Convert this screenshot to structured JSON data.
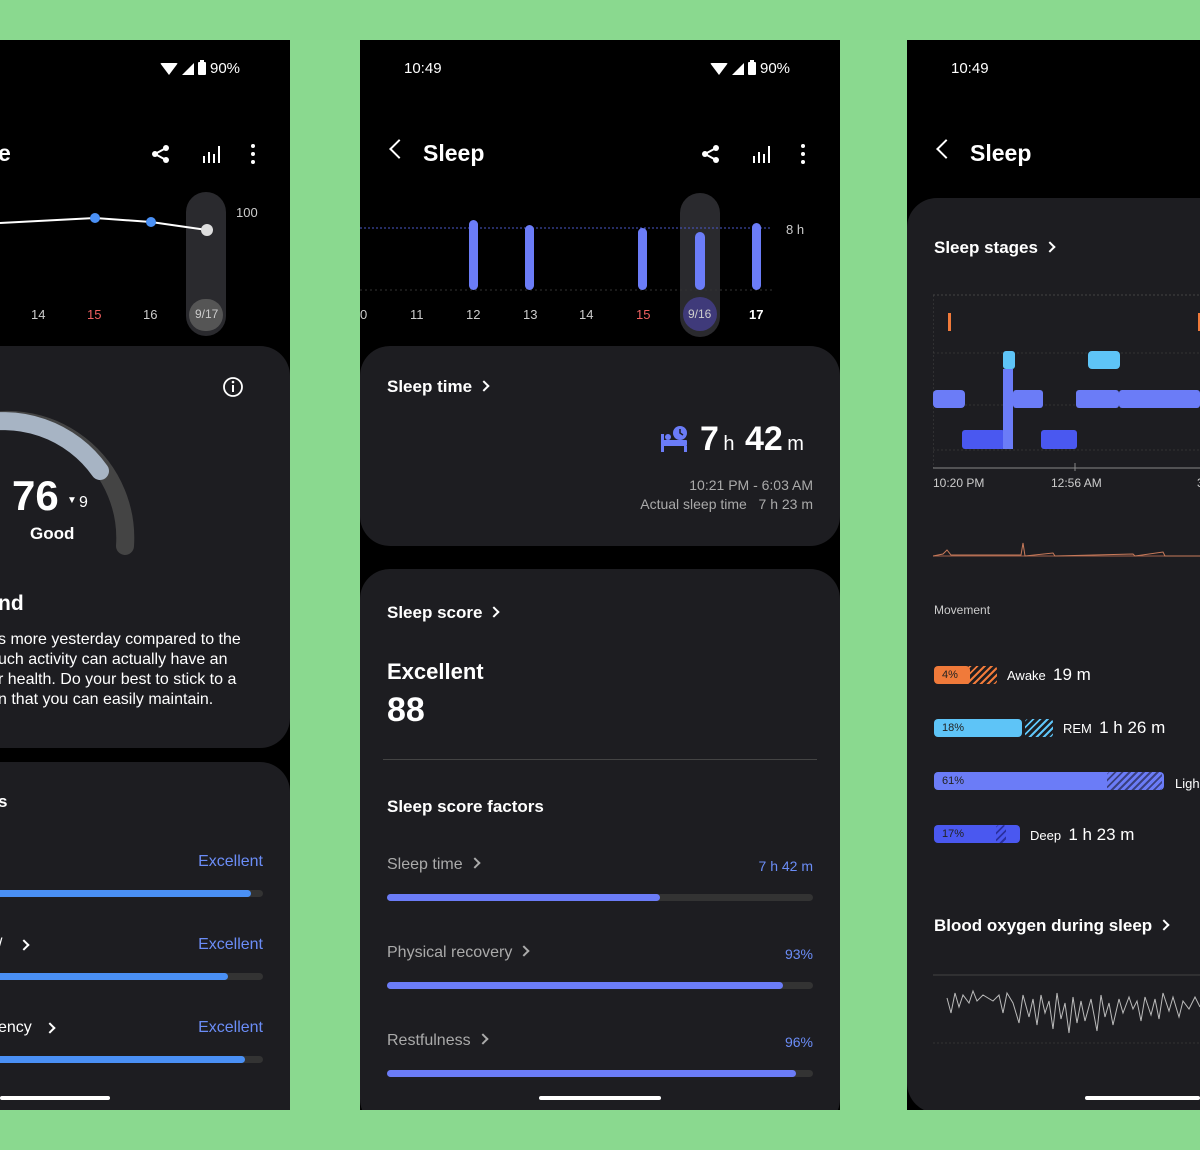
{
  "left": {
    "status_battery": "90%",
    "title_fragment": "e",
    "chart": {
      "max_label": "100",
      "x_labels": [
        "14",
        "15",
        "16",
        "9/17"
      ],
      "highlight_label": "15",
      "selected_label": "9/17"
    },
    "score": {
      "value": "76",
      "delta": "9",
      "rating": "Good"
    },
    "insight": {
      "heading_fragment": "nd",
      "text_lines": [
        "s more yesterday compared to the",
        "uch activity can actually have an",
        "r health. Do your best to stick to a",
        "n that you can easily maintain."
      ]
    },
    "factors_heading_fragment": "s",
    "factors": [
      {
        "name": "",
        "rating": "Excellent",
        "progress_pct": 96
      },
      {
        "name": "/",
        "rating": "Excellent",
        "progress_pct": 88
      },
      {
        "name": "ency",
        "rating": "Excellent",
        "progress_pct": 94
      }
    ]
  },
  "mid": {
    "status_time": "10:49",
    "status_battery": "90%",
    "title": "Sleep",
    "chart": {
      "goal_label": "8 h",
      "x_labels": [
        "0",
        "11",
        "12",
        "13",
        "14",
        "15",
        "9/16",
        "17"
      ],
      "highlight_label": "15",
      "selected_label": "9/16",
      "bold_label": "17"
    },
    "sleep_time": {
      "heading": "Sleep time",
      "hours": "7",
      "hours_unit": "h",
      "minutes": "42",
      "minutes_unit": "m",
      "range": "10:21 PM - 6:03 AM",
      "actual_label": "Actual sleep time",
      "actual_value": "7 h 23 m"
    },
    "sleep_score": {
      "heading": "Sleep score",
      "rating": "Excellent",
      "value": "88",
      "factors_heading": "Sleep score factors",
      "factors": [
        {
          "name": "Sleep time",
          "value": "7 h 42 m",
          "progress_pct": 64
        },
        {
          "name": "Physical recovery",
          "value": "93%",
          "progress_pct": 93
        },
        {
          "name": "Restfulness",
          "value": "96%",
          "progress_pct": 96
        }
      ]
    }
  },
  "right": {
    "status_time": "10:49",
    "title": "Sleep",
    "stages": {
      "heading": "Sleep stages",
      "x_labels": [
        "10:20 PM",
        "12:56 AM",
        "3"
      ],
      "movement_label": "Movement",
      "legend": [
        {
          "pct": "4%",
          "name": "Awake",
          "duration": "19 m",
          "color": "#f07a3a"
        },
        {
          "pct": "18%",
          "name": "REM",
          "duration": "1 h 26 m",
          "color": "#5ec4f7"
        },
        {
          "pct": "61%",
          "name": "Ligh",
          "duration": "",
          "color": "#6b7cf7"
        },
        {
          "pct": "17%",
          "name": "Deep",
          "duration": "1 h 23 m",
          "color": "#4a58f0"
        }
      ]
    },
    "blood_oxygen_heading": "Blood oxygen during sleep"
  }
}
